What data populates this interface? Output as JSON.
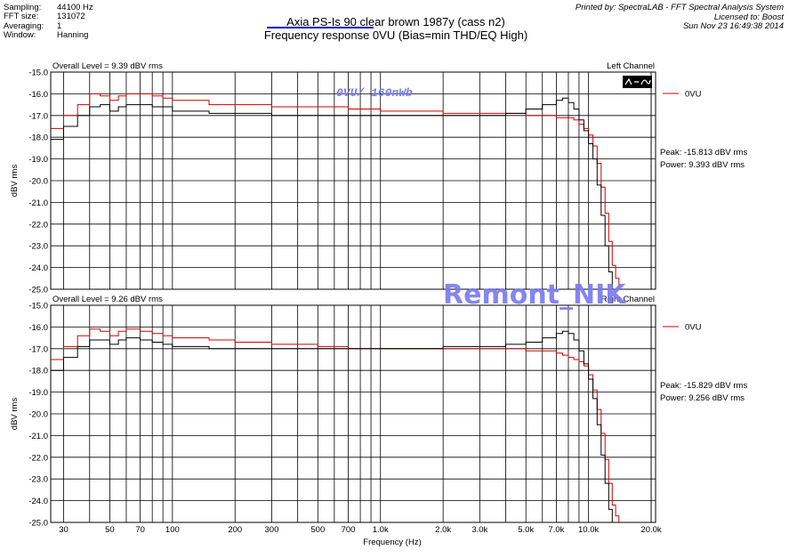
{
  "meta": {
    "rows": [
      {
        "label": "Sampling:",
        "value": "44100 Hz"
      },
      {
        "label": "FFT size:",
        "value": "131072"
      },
      {
        "label": "Averaging:",
        "value": "1"
      },
      {
        "label": "Window:",
        "value": "Hanning"
      }
    ]
  },
  "title": "Axia PS-Is 90 clear brown 1987y (cass n2)",
  "subtitle": "Frequency response 0VU (Bias=min THD/EQ High)",
  "printed": {
    "line1": "Printed by: SpectraLAB - FFT Spectral Analysis System",
    "line2": "Licensed to: Boost",
    "line3": "Sun Nov 23 16:49:38 2014"
  },
  "watermarks": {
    "ref_level": "0VU/ 160nWb",
    "author": "Remont_NIK"
  },
  "colors": {
    "red": "#d40000",
    "black": "#000000",
    "grid": "#000000",
    "watermark_blue": "#7b7bf0",
    "underline": "#0000cc"
  },
  "chart_data": [
    {
      "type": "line",
      "overall_level": "Overall Level = 9.39 dBV rms",
      "channel": "Left Channel",
      "ylabel": "dBV rms",
      "ylim": [
        -25.0,
        -15.0
      ],
      "xlim": [
        26,
        21000
      ],
      "x_scale": "log",
      "y_ticks": [
        "-15.0",
        "-16.0",
        "-17.0",
        "-18.0",
        "-19.0",
        "-20.0",
        "-21.0",
        "-22.0",
        "-23.0",
        "-24.0",
        "-25.0"
      ],
      "legend": {
        "label": "0VU",
        "placement": "right"
      },
      "peak": "Peak: -15.813 dBV rms",
      "power": "Power: 9.393 dBV rms",
      "series": [
        {
          "color": "red",
          "x": [
            26,
            30,
            35,
            40,
            45,
            50,
            55,
            60,
            70,
            80,
            90,
            100,
            150,
            200,
            300,
            400,
            500,
            700,
            1000,
            1500,
            2000,
            3000,
            4000,
            5000,
            6000,
            7000,
            7500,
            8000,
            8500,
            9000,
            9500,
            10000,
            10500,
            11000,
            11500,
            12000,
            12500,
            13000,
            13500,
            14000,
            15000,
            16000,
            20000
          ],
          "y": [
            -17.6,
            -17.0,
            -16.5,
            -16.0,
            -16.1,
            -16.3,
            -16.1,
            -16.0,
            -16.0,
            -16.1,
            -16.2,
            -16.3,
            -16.5,
            -16.5,
            -16.6,
            -16.6,
            -16.6,
            -16.7,
            -16.8,
            -16.8,
            -16.9,
            -16.9,
            -16.9,
            -17.0,
            -17.0,
            -17.1,
            -17.1,
            -17.1,
            -17.2,
            -17.4,
            -17.6,
            -17.9,
            -18.4,
            -19.2,
            -20.3,
            -21.5,
            -22.8,
            -23.9,
            -24.5,
            -25.0,
            -25.0,
            -25.0,
            -25.0
          ]
        },
        {
          "color": "black",
          "x": [
            26,
            30,
            35,
            40,
            45,
            50,
            55,
            60,
            70,
            80,
            90,
            100,
            150,
            200,
            300,
            400,
            500,
            700,
            1000,
            1500,
            2000,
            3000,
            4000,
            5000,
            6000,
            7000,
            7500,
            8000,
            8500,
            9000,
            9500,
            10000,
            10500,
            11000,
            11500,
            12000,
            12500,
            13000,
            13500,
            14000,
            15000,
            16000,
            20000
          ],
          "y": [
            -18.1,
            -17.5,
            -17.0,
            -16.6,
            -16.5,
            -16.8,
            -16.6,
            -16.5,
            -16.5,
            -16.6,
            -16.6,
            -16.8,
            -16.9,
            -16.9,
            -17.0,
            -17.0,
            -17.0,
            -17.0,
            -17.0,
            -17.0,
            -17.0,
            -17.0,
            -16.9,
            -16.7,
            -16.5,
            -16.3,
            -16.2,
            -16.4,
            -16.7,
            -17.2,
            -17.7,
            -18.3,
            -19.0,
            -20.2,
            -21.6,
            -23.0,
            -24.2,
            -25.0,
            -25.0,
            -25.0,
            -25.0,
            -25.0,
            -25.0
          ]
        }
      ]
    },
    {
      "type": "line",
      "overall_level": "Overall Level = 9.26 dBV rms",
      "channel": "Right Channel",
      "ylabel": "dBV rms",
      "ylim": [
        -25.0,
        -15.0
      ],
      "xlim": [
        26,
        21000
      ],
      "x_scale": "log",
      "y_ticks": [
        "-15.0",
        "-16.0",
        "-17.0",
        "-18.0",
        "-19.0",
        "-20.0",
        "-21.0",
        "-22.0",
        "-23.0",
        "-24.0",
        "-25.0"
      ],
      "legend": {
        "label": "0VU",
        "placement": "right"
      },
      "peak": "Peak: -15.829 dBV rms",
      "power": "Power: 9.256 dBV rms",
      "series": [
        {
          "color": "red",
          "x": [
            26,
            30,
            35,
            40,
            45,
            50,
            55,
            60,
            70,
            80,
            90,
            100,
            150,
            200,
            300,
            400,
            500,
            700,
            1000,
            1500,
            2000,
            3000,
            4000,
            5000,
            6000,
            7000,
            7500,
            8000,
            8500,
            9000,
            9500,
            10000,
            10500,
            11000,
            11500,
            12000,
            12500,
            13000,
            13500,
            14000,
            15000,
            16000,
            20000
          ],
          "y": [
            -17.5,
            -16.9,
            -16.4,
            -16.1,
            -16.2,
            -16.4,
            -16.2,
            -16.1,
            -16.2,
            -16.3,
            -16.4,
            -16.5,
            -16.6,
            -16.7,
            -16.8,
            -16.8,
            -16.9,
            -17.0,
            -17.0,
            -17.0,
            -17.0,
            -17.0,
            -17.0,
            -17.1,
            -17.1,
            -17.2,
            -17.3,
            -17.4,
            -17.5,
            -17.6,
            -17.8,
            -18.2,
            -18.9,
            -19.8,
            -20.9,
            -22.1,
            -23.2,
            -24.2,
            -24.7,
            -25.0,
            -25.0,
            -25.0,
            -25.0
          ]
        },
        {
          "color": "black",
          "x": [
            26,
            30,
            35,
            40,
            45,
            50,
            55,
            60,
            70,
            80,
            90,
            100,
            150,
            200,
            300,
            400,
            500,
            700,
            1000,
            1500,
            2000,
            3000,
            4000,
            5000,
            6000,
            7000,
            7500,
            8000,
            8500,
            9000,
            9500,
            10000,
            10500,
            11000,
            11500,
            12000,
            12500,
            13000,
            13500,
            14000,
            15000,
            16000,
            20000
          ],
          "y": [
            -18.0,
            -17.4,
            -16.9,
            -16.6,
            -16.6,
            -16.8,
            -16.6,
            -16.5,
            -16.6,
            -16.7,
            -16.8,
            -16.9,
            -17.0,
            -17.0,
            -17.0,
            -17.0,
            -17.0,
            -17.0,
            -17.0,
            -17.0,
            -16.9,
            -16.9,
            -16.8,
            -16.7,
            -16.5,
            -16.3,
            -16.2,
            -16.3,
            -16.6,
            -17.1,
            -17.7,
            -18.4,
            -19.3,
            -20.5,
            -21.9,
            -23.2,
            -24.4,
            -25.0,
            -25.0,
            -25.0,
            -25.0,
            -25.0,
            -25.0
          ]
        }
      ]
    }
  ],
  "x_axis": {
    "label": "Frequency (Hz)",
    "ticks": [
      {
        "v": 30,
        "t": "30"
      },
      {
        "v": 50,
        "t": "50"
      },
      {
        "v": 70,
        "t": "70"
      },
      {
        "v": 100,
        "t": "100"
      },
      {
        "v": 200,
        "t": "200"
      },
      {
        "v": 300,
        "t": "300"
      },
      {
        "v": 500,
        "t": "500"
      },
      {
        "v": 700,
        "t": "700"
      },
      {
        "v": 1000,
        "t": "1.0k"
      },
      {
        "v": 2000,
        "t": "2.0k"
      },
      {
        "v": 3000,
        "t": "3.0k"
      },
      {
        "v": 5000,
        "t": "5.0k"
      },
      {
        "v": 7000,
        "t": "7.0k"
      },
      {
        "v": 10000,
        "t": "10.0k"
      },
      {
        "v": 20000,
        "t": "20.0k"
      }
    ]
  }
}
